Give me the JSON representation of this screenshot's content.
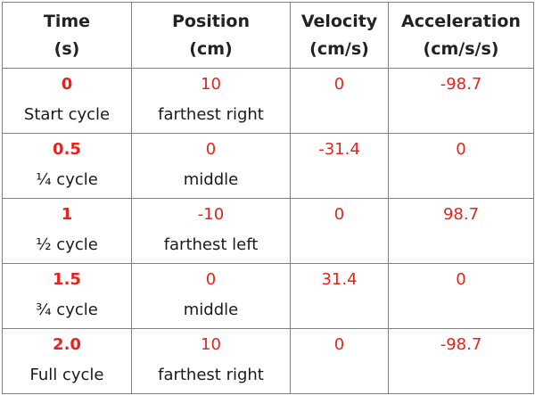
{
  "headers": [
    [
      "Time",
      "(s)"
    ],
    [
      "Position",
      "(cm)"
    ],
    [
      "Velocity",
      "(cm/s)"
    ],
    [
      "Acceleration",
      "(cm/s/s)"
    ]
  ],
  "rows": [
    {
      "time": "0",
      "time_label": "Start cycle",
      "position": "10",
      "position_label": "farthest right",
      "velocity": "0",
      "acceleration": "-98.7"
    },
    {
      "time": "0.5",
      "time_label": "¼ cycle",
      "position": "0",
      "position_label": "middle",
      "velocity": "-31.4",
      "acceleration": "0"
    },
    {
      "time": "1",
      "time_label": "½ cycle",
      "position": "-10",
      "position_label": "farthest left",
      "velocity": "0",
      "acceleration": "98.7"
    },
    {
      "time": "1.5",
      "time_label": "¾ cycle",
      "position": "0",
      "position_label": "middle",
      "velocity": "31.4",
      "acceleration": "0"
    },
    {
      "time": "2.0",
      "time_label": "Full cycle",
      "position": "10",
      "position_label": "farthest right",
      "velocity": "0",
      "acceleration": "-98.7"
    }
  ],
  "colors": {
    "value": "#e8231c",
    "label": "#1a1a1a",
    "grid": "#808080"
  },
  "chart_data": {
    "type": "table",
    "columns": [
      "Time (s)",
      "Position (cm)",
      "Velocity (cm/s)",
      "Acceleration (cm/s/s)"
    ],
    "rows": [
      [
        0,
        10,
        0,
        -98.7
      ],
      [
        0.5,
        0,
        -31.4,
        0
      ],
      [
        1,
        -10,
        0,
        98.7
      ],
      [
        1.5,
        0,
        31.4,
        0
      ],
      [
        2.0,
        10,
        0,
        -98.7
      ]
    ]
  }
}
